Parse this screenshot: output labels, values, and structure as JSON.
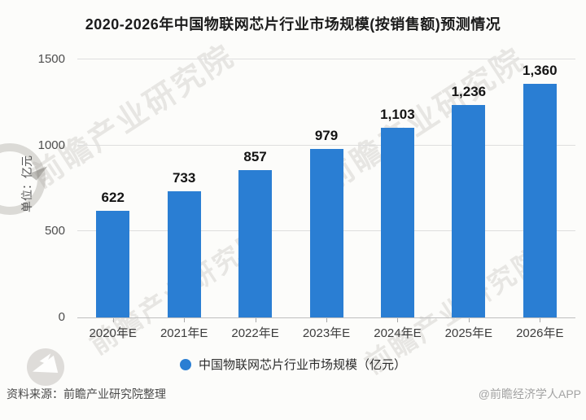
{
  "title": "2020-2026年中国物联网芯片行业市场规模(按销售额)预测情况",
  "chart_data": {
    "type": "bar",
    "categories": [
      "2020年E",
      "2021年E",
      "2022年E",
      "2023年E",
      "2024年E",
      "2025年E",
      "2026年E"
    ],
    "values": [
      622,
      733,
      857,
      979,
      1103,
      1236,
      1360
    ],
    "value_labels": [
      "622",
      "733",
      "857",
      "979",
      "1,103",
      "1,236",
      "1,360"
    ],
    "title": "2020-2026年中国物联网芯片行业市场规模(按销售额)预测情况",
    "xlabel": "",
    "ylabel": "单位：亿元",
    "ylim": [
      0,
      1500
    ],
    "yticks": [
      0,
      500,
      1000,
      1500
    ],
    "grid": true,
    "legend_label": "中国物联网芯片行业市场规模（亿元）",
    "legend_position": "bottom",
    "bar_color": "#2a7ed3"
  },
  "footer": {
    "source": "资料来源：前瞻产业研究院整理",
    "credit": "@前瞻经济学人APP"
  },
  "watermark": {
    "text": "前瞻产业研究院",
    "logo": "qianzhan-logo"
  },
  "colors": {
    "bar": "#2a7ed3",
    "grid": "#dedede",
    "axis": "#bfbfbf",
    "title_text": "#1b1b1b",
    "value_text": "#141414",
    "tick_text": "#3d3d3d",
    "source_text": "#4a4a4a",
    "credit_text": "#a3a3a3"
  }
}
